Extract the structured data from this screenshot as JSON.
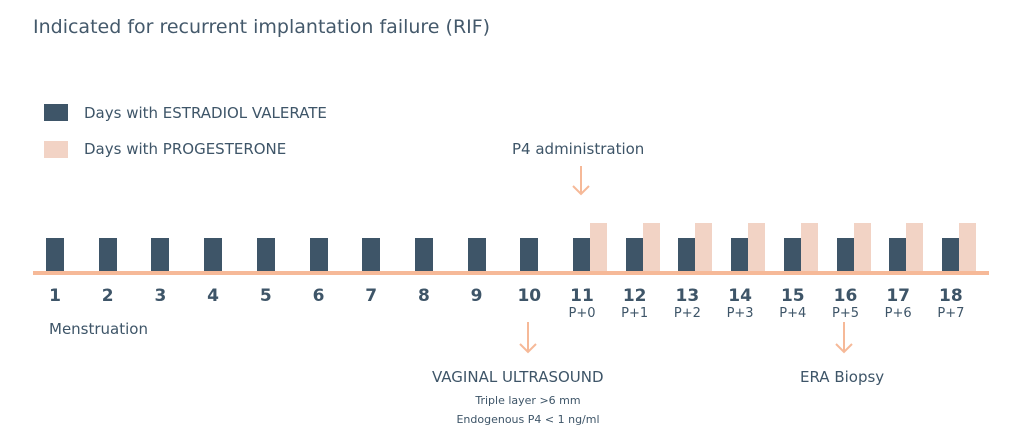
{
  "title": "Indicated for recurrent implantation failure (RIF)",
  "colors": {
    "estradiol": "#3e5568",
    "progesterone": "#f2d3c5",
    "axis": "#f6b998",
    "arrow": "#f6b998",
    "text": "#3e5568"
  },
  "legend": [
    {
      "label": "Days with ESTRADIOL VALERATE",
      "color": "#3e5568"
    },
    {
      "label": "Days with PROGESTERONE",
      "color": "#f2d3c5"
    }
  ],
  "days": [
    "1",
    "2",
    "3",
    "4",
    "5",
    "6",
    "7",
    "8",
    "9",
    "10",
    "11",
    "12",
    "13",
    "14",
    "15",
    "16",
    "17",
    "18"
  ],
  "progesterone_days": [
    "P+0",
    "P+1",
    "P+2",
    "P+3",
    "P+4",
    "P+5",
    "P+6",
    "P+7"
  ],
  "progesterone_start_day": 11,
  "annotations": {
    "p4_admin": "P4 administration",
    "menstruation": "Menstruation",
    "vaginal_us": "VAGINAL ULTRASOUND",
    "triple_layer": "Triple layer >6 mm",
    "endogenous": "Endogenous P4 < 1 ng/ml",
    "era_biopsy": "ERA Biopsy"
  }
}
